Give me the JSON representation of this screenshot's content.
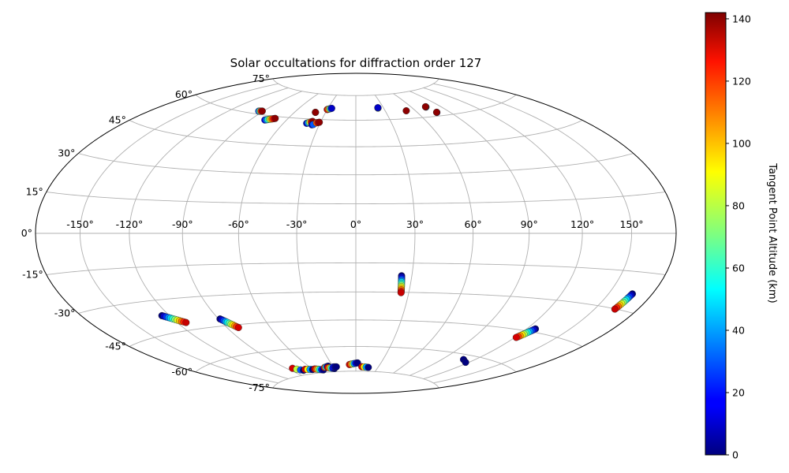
{
  "chart_data": {
    "type": "scatter",
    "projection": "hammer",
    "title": "Solar occultations for diffraction order 127",
    "xlabel": "",
    "ylabel": "",
    "longitude_ticks": [
      "-150°",
      "-120°",
      "-90°",
      "-60°",
      "-30°",
      "0°",
      "30°",
      "60°",
      "90°",
      "120°",
      "150°"
    ],
    "latitude_ticks": [
      "75°",
      "60°",
      "45°",
      "30°",
      "15°",
      "0°",
      "-15°",
      "-30°",
      "-45°",
      "-60°",
      "-75°"
    ],
    "grid": true,
    "colormap": "jet",
    "colorbar": {
      "label": "Tangent Point Altitude (km)",
      "range": [
        0,
        142
      ],
      "ticks": [
        "0",
        "20",
        "40",
        "60",
        "80",
        "100",
        "120",
        "140"
      ]
    },
    "tracks": [
      {
        "lon": [
          -94,
          -93,
          -92,
          -91
        ],
        "lat": [
          61.5,
          61.6,
          61.7,
          61.8
        ],
        "alt": [
          30,
          70,
          120,
          140
        ]
      },
      {
        "lon": [
          -78,
          -77,
          -76,
          -75,
          -74,
          -73,
          -72,
          -71
        ],
        "lat": [
          57.5,
          57.7,
          57.9,
          58.1,
          58.3,
          58.5,
          58.7,
          58.9
        ],
        "alt": [
          15,
          35,
          55,
          75,
          95,
          110,
          125,
          140
        ]
      },
      {
        "lon": [
          -40,
          -40
        ],
        "lat": [
          64.0,
          64.0
        ],
        "alt": [
          130,
          140
        ]
      },
      {
        "lon": [
          -41,
          -40,
          -39,
          -38,
          -37
        ],
        "lat": [
          57.5,
          57.8,
          58.1,
          58.4,
          58.7
        ],
        "alt": [
          10,
          40,
          80,
          120,
          140
        ]
      },
      {
        "lon": [
          -36,
          -35
        ],
        "lat": [
          56.8,
          57.0
        ],
        "alt": [
          10,
          30
        ]
      },
      {
        "lon": [
          -33,
          -32,
          -31
        ],
        "lat": [
          58.0,
          58.2,
          58.4
        ],
        "alt": [
          110,
          130,
          140
        ]
      },
      {
        "lon": [
          -30,
          -29,
          -28,
          -27,
          -26
        ],
        "lat": [
          66.0,
          66.2,
          66.4,
          66.6,
          66.8
        ],
        "alt": [
          130,
          110,
          80,
          40,
          10
        ]
      },
      {
        "lon": [
          24,
          24,
          24
        ],
        "lat": [
          67.0,
          67.1,
          67.2
        ],
        "alt": [
          140,
          60,
          10
        ]
      },
      {
        "lon": [
          51
        ],
        "lat": [
          64.5
        ],
        "alt": [
          140
        ]
      },
      {
        "lon": [
          75,
          75,
          75
        ],
        "lat": [
          65.5,
          65.6,
          65.7
        ],
        "alt": [
          10,
          60,
          140
        ]
      },
      {
        "lon": [
          78,
          78
        ],
        "lat": [
          62.0,
          62.1
        ],
        "alt": [
          10,
          140
        ]
      },
      {
        "lon": [
          24.5,
          24.6,
          24.7,
          24.8,
          24.9,
          25.0,
          25.1,
          25.2,
          25.3,
          25.4,
          25.5,
          25.6
        ],
        "lat": [
          -21.5,
          -22.3,
          -23.1,
          -23.9,
          -24.7,
          -25.5,
          -26.3,
          -27.1,
          -27.9,
          -28.7,
          -29.5,
          -30.2
        ],
        "alt": [
          0,
          12,
          24,
          36,
          48,
          60,
          72,
          84,
          96,
          108,
          120,
          132
        ]
      },
      {
        "lon": [
          166,
          165.8,
          165.6,
          165.4,
          165.2,
          165.0,
          164.8,
          164.6,
          164.4,
          164.2,
          164.0,
          163.8
        ],
        "lat": [
          -23.5,
          -24.1,
          -24.7,
          -25.3,
          -25.9,
          -26.5,
          -27.1,
          -27.7,
          -28.3,
          -28.9,
          -29.5,
          -30.1
        ],
        "alt": [
          0,
          12,
          24,
          36,
          48,
          60,
          72,
          84,
          96,
          108,
          120,
          132
        ]
      },
      {
        "lon": [
          -125,
          -124,
          -123,
          -122,
          -121,
          -120,
          -119,
          -118,
          -117,
          -116,
          -115,
          -114
        ],
        "lat": [
          -37.0,
          -37.4,
          -37.8,
          -38.2,
          -38.6,
          -39.0,
          -39.4,
          -39.8,
          -40.2,
          -40.6,
          -41.0,
          -41.4
        ],
        "alt": [
          0,
          12,
          24,
          36,
          48,
          60,
          72,
          84,
          96,
          108,
          120,
          132
        ]
      },
      {
        "lon": [
          -89,
          -88.3,
          -87.6,
          -86.9,
          -86.2,
          -85.5,
          -84.8,
          -84.1,
          -83.4,
          -82.7,
          -82.0
        ],
        "lat": [
          -41.5,
          -42.0,
          -42.5,
          -43.0,
          -43.5,
          -44.0,
          -44.5,
          -45.0,
          -45.5,
          -46.0,
          -46.5
        ],
        "alt": [
          0,
          13,
          26,
          39,
          52,
          65,
          78,
          91,
          104,
          117,
          130
        ]
      },
      {
        "lon": [
          126,
          125.5,
          125,
          124.5,
          124,
          123.5,
          123,
          122.5,
          122,
          121.5,
          121
        ],
        "lat": [
          -43.5,
          -44.0,
          -44.5,
          -45.0,
          -45.5,
          -46.0,
          -46.5,
          -47.0,
          -47.5,
          -48.0,
          -48.5
        ],
        "alt": [
          0,
          13,
          26,
          39,
          52,
          65,
          78,
          91,
          104,
          117,
          130
        ]
      },
      {
        "lon": [
          -83,
          -80,
          -77,
          -74
        ],
        "lat": [
          -70.5,
          -71.3,
          -72.0,
          -72.4
        ],
        "alt": [
          130,
          80,
          30,
          0
        ]
      },
      {
        "lon": [
          -70,
          -67,
          -64,
          -61
        ],
        "lat": [
          -72.0,
          -72.2,
          -72.4,
          -72.6
        ],
        "alt": [
          130,
          90,
          40,
          0
        ]
      },
      {
        "lon": [
          -57,
          -55,
          -53,
          -51,
          -49,
          -47
        ],
        "lat": [
          -72.4,
          -72.6,
          -72.8,
          -73.0,
          -73.2,
          -73.4
        ],
        "alt": [
          130,
          110,
          80,
          50,
          20,
          0
        ]
      },
      {
        "lon": [
          -42,
          -40,
          -38,
          -36
        ],
        "lat": [
          -72.0,
          -71.8,
          -71.6,
          -71.4
        ],
        "alt": [
          120,
          60,
          20,
          0
        ]
      },
      {
        "lon": [
          -38,
          -36,
          -34,
          -32,
          -30
        ],
        "lat": [
          -72.2,
          -72.4,
          -72.6,
          -72.8,
          -73.0
        ],
        "alt": [
          130,
          100,
          60,
          20,
          0
        ]
      },
      {
        "lon": [
          -30,
          -28,
          -26
        ],
        "lat": [
          -72.0,
          -72.0,
          -72.0
        ],
        "alt": [
          20,
          5,
          0
        ]
      },
      {
        "lon": [
          -8,
          -6,
          -4,
          -2,
          0,
          2
        ],
        "lat": [
          -70.8,
          -70.6,
          -70.4,
          -70.2,
          -70.0,
          -69.8
        ],
        "alt": [
          130,
          110,
          80,
          40,
          15,
          0
        ]
      },
      {
        "lon": [
          8,
          11,
          14,
          17
        ],
        "lat": [
          -72.2,
          -72.3,
          -72.4,
          -72.5
        ],
        "alt": [
          130,
          90,
          40,
          0
        ]
      },
      {
        "lon": [
          110
        ],
        "lat": [
          -62.5
        ],
        "alt": [
          0
        ]
      },
      {
        "lon": [
          117
        ],
        "lat": [
          -63.5
        ],
        "alt": [
          0
        ]
      }
    ]
  }
}
